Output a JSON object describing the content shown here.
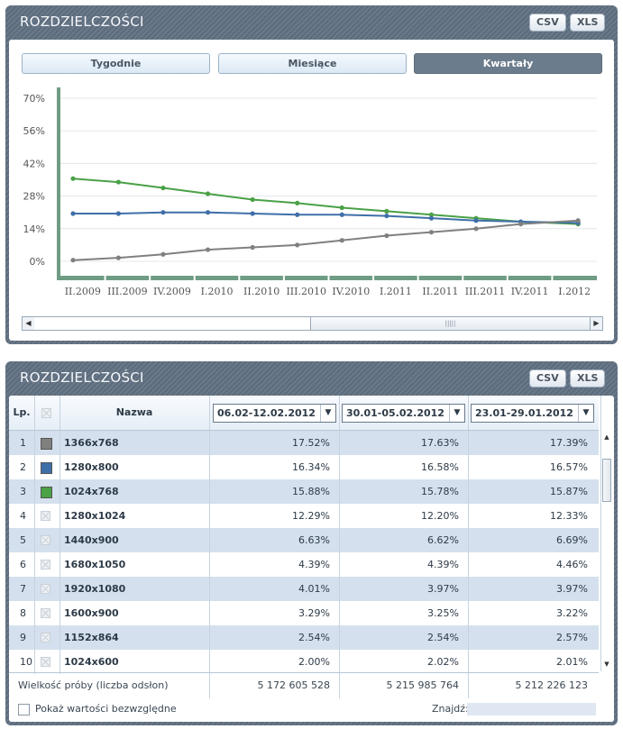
{
  "chart_panel": {
    "title": "ROZDZIELCZOŚCI",
    "export_buttons": [
      "CSV",
      "XLS"
    ],
    "tabs": [
      {
        "label": "Tygodnie",
        "active": false
      },
      {
        "label": "Miesiące",
        "active": false
      },
      {
        "label": "Kwartały",
        "active": true
      }
    ]
  },
  "chart_data": {
    "type": "line",
    "categories": [
      "II.2009",
      "III.2009",
      "IV.2009",
      "I.2010",
      "II.2010",
      "III.2010",
      "IV.2010",
      "I.2011",
      "II.2011",
      "III.2011",
      "IV.2011",
      "I.2012"
    ],
    "y_ticks": [
      "70%",
      "56%",
      "42%",
      "28%",
      "14%",
      "0%"
    ],
    "ylim": [
      0,
      70
    ],
    "grid": true,
    "series": [
      {
        "color": "#4aa146",
        "values": [
          35.5,
          34,
          31.5,
          29,
          26.5,
          25,
          23,
          21.5,
          20,
          18.5,
          17,
          16
        ]
      },
      {
        "color": "#3f6fa8",
        "values": [
          20.5,
          20.5,
          21,
          21,
          20.5,
          20,
          20,
          19.5,
          18.5,
          17.5,
          17,
          16.5
        ]
      },
      {
        "color": "#808080",
        "values": [
          0.5,
          1.5,
          3,
          5,
          6,
          7,
          9,
          11,
          12.5,
          14,
          16,
          17.5
        ]
      }
    ]
  },
  "table_panel": {
    "title": "ROZDZIELCZOŚCI",
    "export_buttons": [
      "CSV",
      "XLS"
    ],
    "headers": {
      "index": "Lp.",
      "name": "Nazwa"
    },
    "period_dropdowns": [
      "06.02-12.02.2012",
      "30.01-05.02.2012",
      "23.01-29.01.2012"
    ],
    "rows": [
      {
        "n": "1",
        "name": "1366x768",
        "swatch": "#808080",
        "v": [
          "17.52%",
          "17.63%",
          "17.39%"
        ]
      },
      {
        "n": "2",
        "name": "1280x800",
        "swatch": "#3f6fa8",
        "v": [
          "16.34%",
          "16.58%",
          "16.57%"
        ]
      },
      {
        "n": "3",
        "name": "1024x768",
        "swatch": "#4aa146",
        "v": [
          "15.88%",
          "15.78%",
          "15.87%"
        ]
      },
      {
        "n": "4",
        "name": "1280x1024",
        "swatch": "",
        "v": [
          "12.29%",
          "12.20%",
          "12.33%"
        ]
      },
      {
        "n": "5",
        "name": "1440x900",
        "swatch": "",
        "v": [
          "6.63%",
          "6.62%",
          "6.69%"
        ]
      },
      {
        "n": "6",
        "name": "1680x1050",
        "swatch": "",
        "v": [
          "4.39%",
          "4.39%",
          "4.46%"
        ]
      },
      {
        "n": "7",
        "name": "1920x1080",
        "swatch": "",
        "v": [
          "4.01%",
          "3.97%",
          "3.97%"
        ]
      },
      {
        "n": "8",
        "name": "1600x900",
        "swatch": "",
        "v": [
          "3.29%",
          "3.25%",
          "3.22%"
        ]
      },
      {
        "n": "9",
        "name": "1152x864",
        "swatch": "",
        "v": [
          "2.54%",
          "2.54%",
          "2.57%"
        ]
      },
      {
        "n": "10",
        "name": "1024x600",
        "swatch": "",
        "v": [
          "2.00%",
          "2.02%",
          "2.01%"
        ]
      }
    ],
    "sample_label": "Wielkość próby (liczba odsłon)",
    "sample_values": [
      "5 172 605 528",
      "5 215 985 764",
      "5 212 226 123"
    ],
    "absolute_checkbox_label": "Pokaż wartości bezwzględne",
    "find_label": "Znajdź:",
    "find_value": ""
  }
}
